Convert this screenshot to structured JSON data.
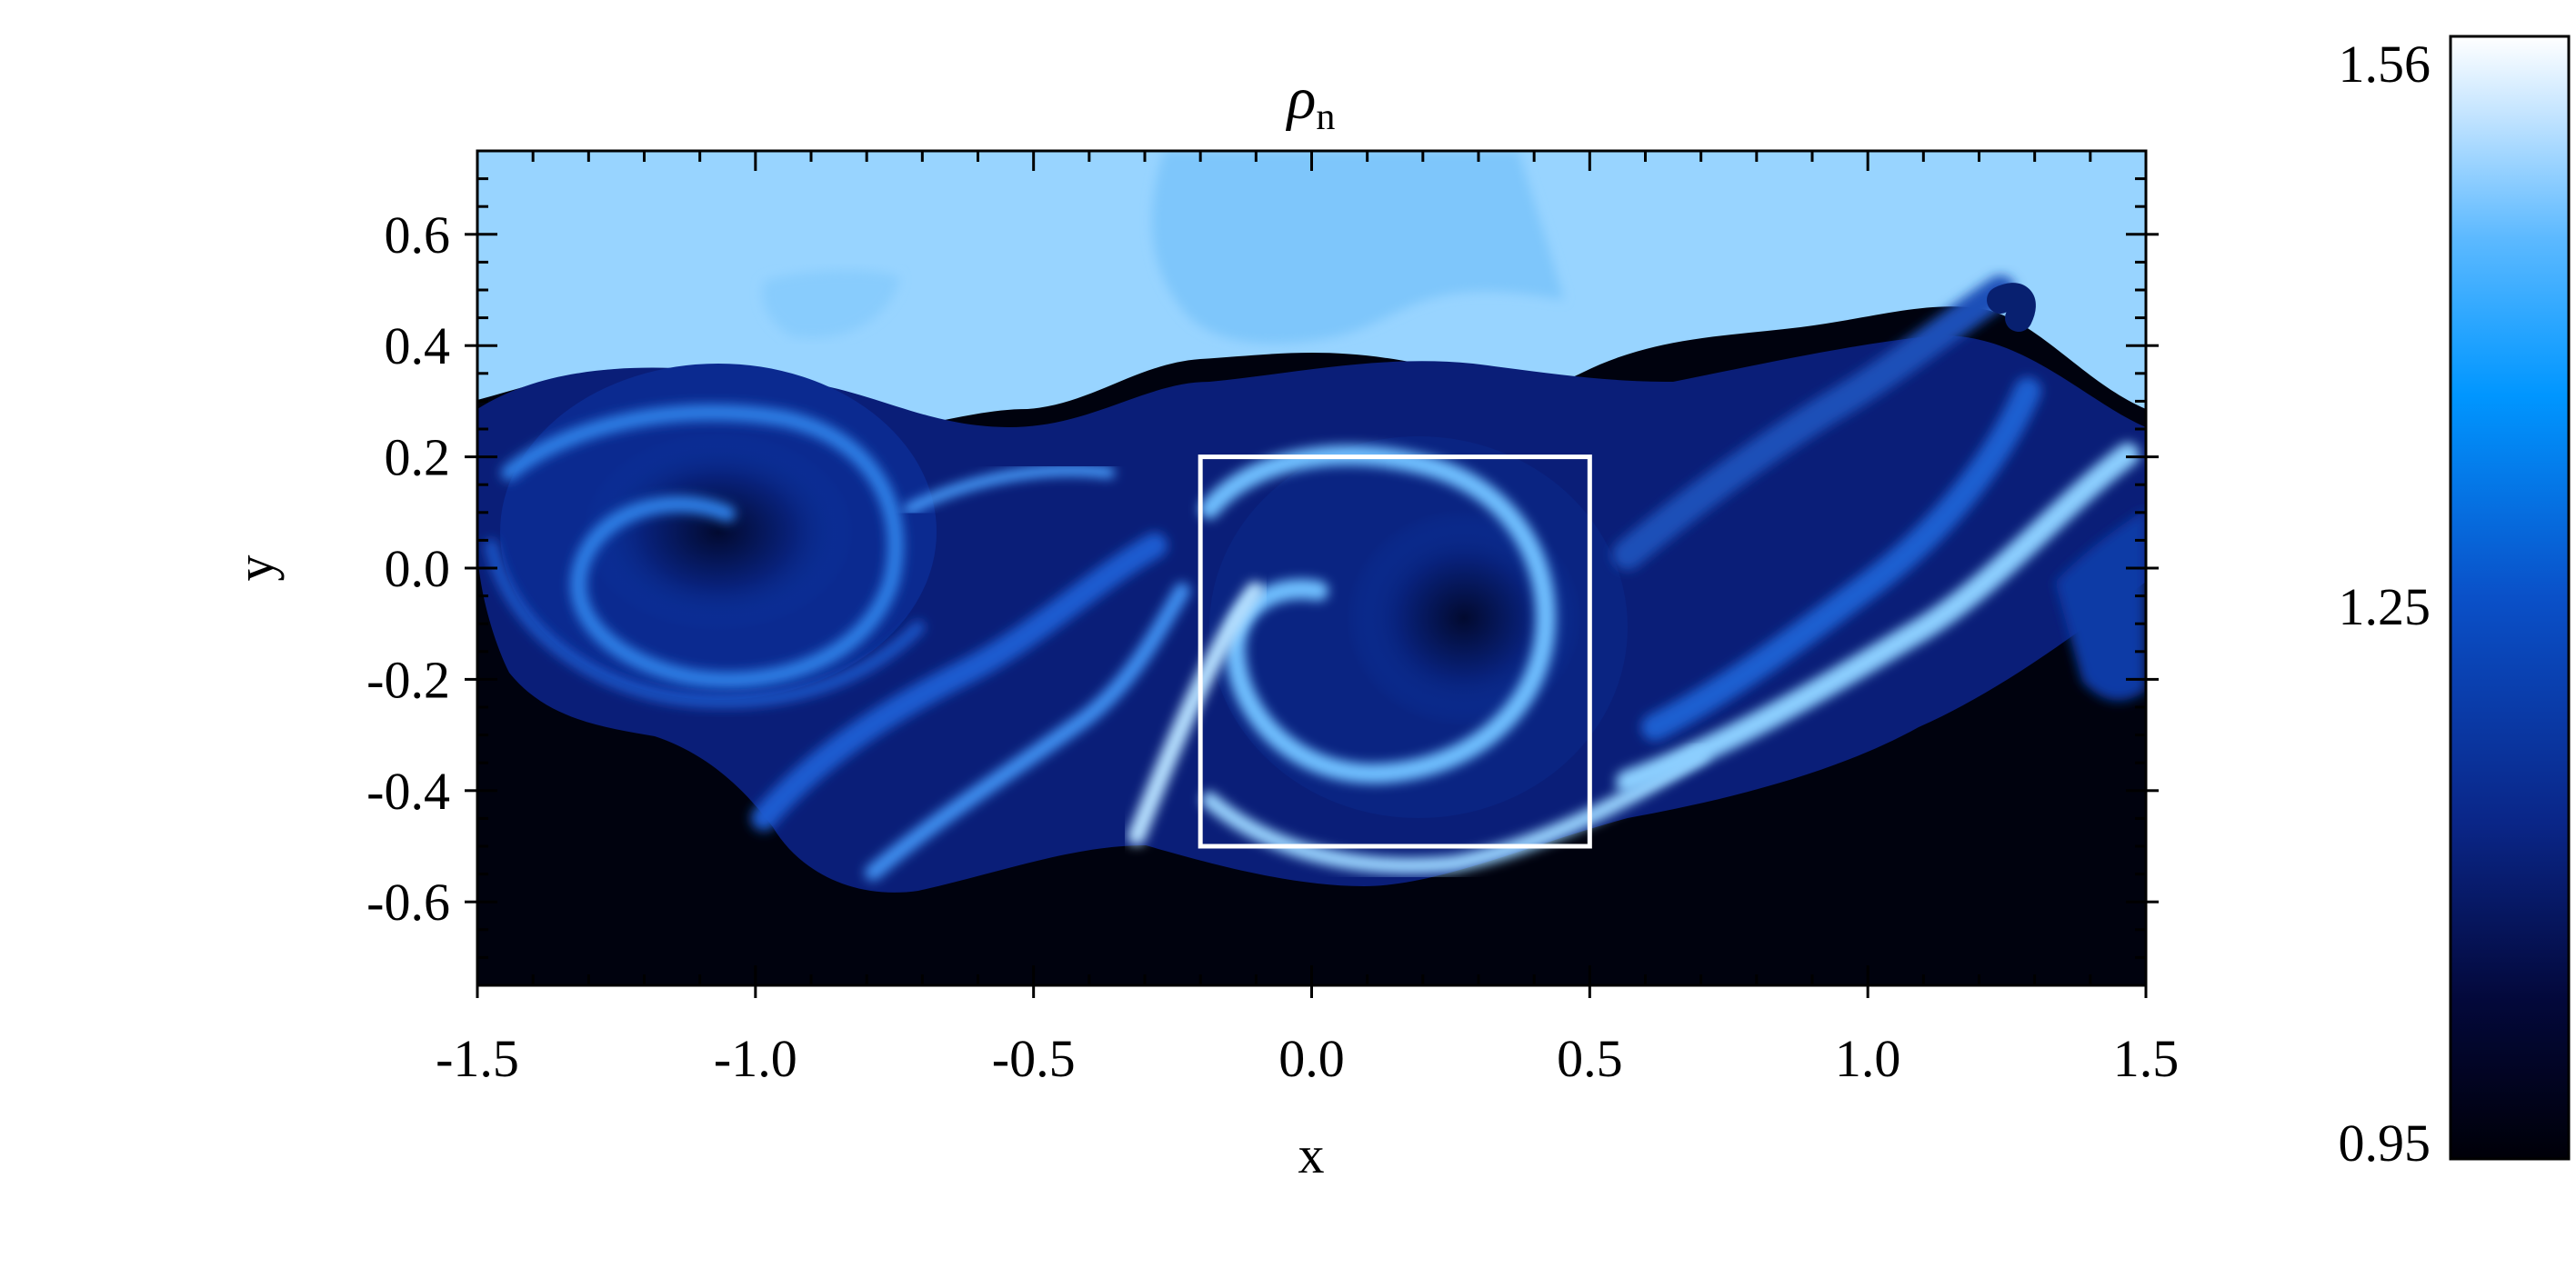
{
  "chart_data": {
    "type": "heatmap",
    "title": "ρ",
    "title_subscript": "n",
    "xlabel": "x",
    "ylabel": "y",
    "xlim": [
      -1.5,
      1.5
    ],
    "ylim": [
      -0.75,
      0.75
    ],
    "x_ticks": [
      -1.5,
      -1.0,
      -0.5,
      0.0,
      0.5,
      1.0,
      1.5
    ],
    "x_tick_labels": [
      "-1.5",
      "-1.0",
      "-0.5",
      "0.0",
      "0.5",
      "1.0",
      "1.5"
    ],
    "y_ticks": [
      0.6,
      0.4,
      0.2,
      0.0,
      -0.2,
      -0.4,
      -0.6
    ],
    "y_tick_labels": [
      "0.6",
      "0.4",
      "0.2",
      "0.0",
      "-0.2",
      "-0.4",
      "-0.6"
    ],
    "colorbar": {
      "min": 0.95,
      "mid": 1.25,
      "max": 1.56,
      "tick_labels": [
        "1.56",
        "1.25",
        "0.95"
      ],
      "colors": [
        "#000008",
        "#07124d",
        "#0a2fa0",
        "#0064e0",
        "#0096ff",
        "#58b8ff",
        "#b8deff",
        "#ffffff"
      ]
    },
    "highlight_box": {
      "x_min": -0.2,
      "x_max": 0.5,
      "y_min": -0.5,
      "y_max": 0.2,
      "color": "#ffffff"
    },
    "field_colors": {
      "upper": "#98d4ff",
      "upper_patch": "#7ec6fb",
      "lower": "#00020e",
      "mix_dark": "#0a1e78",
      "mix_mid": "#1e5fd0",
      "mix_light": "#8ccfff"
    }
  }
}
